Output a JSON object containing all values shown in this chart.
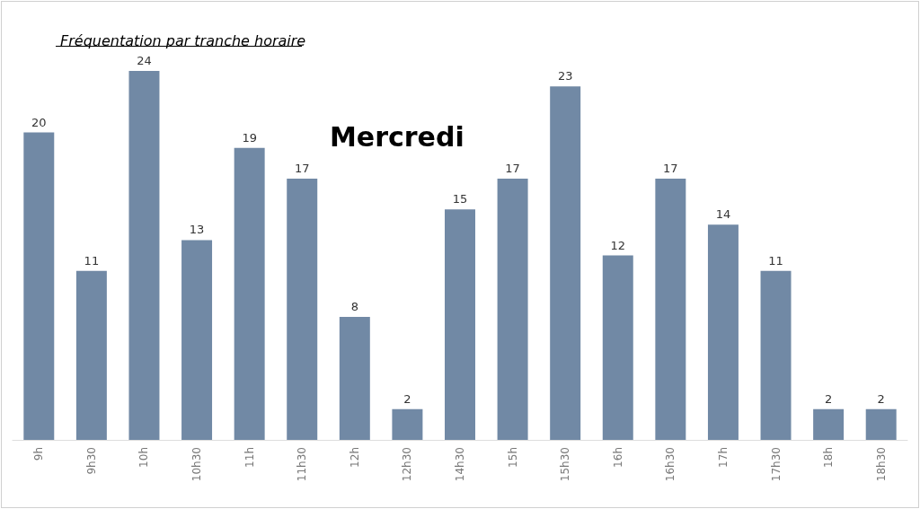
{
  "chart_data": {
    "type": "bar",
    "title": "Fréquentation par tranche horaire",
    "subtitle": "Mercredi",
    "categories": [
      "9h",
      "9h30",
      "10h",
      "10h30",
      "11h",
      "11h30",
      "12h",
      "12h30",
      "14h30",
      "15h",
      "15h30",
      "16h",
      "16h30",
      "17h",
      "17h30",
      "18h",
      "18h30"
    ],
    "values": [
      20,
      11,
      24,
      13,
      19,
      17,
      8,
      2,
      15,
      17,
      23,
      12,
      17,
      14,
      11,
      2,
      2
    ],
    "color": "#7189a5",
    "data_labels": true
  }
}
